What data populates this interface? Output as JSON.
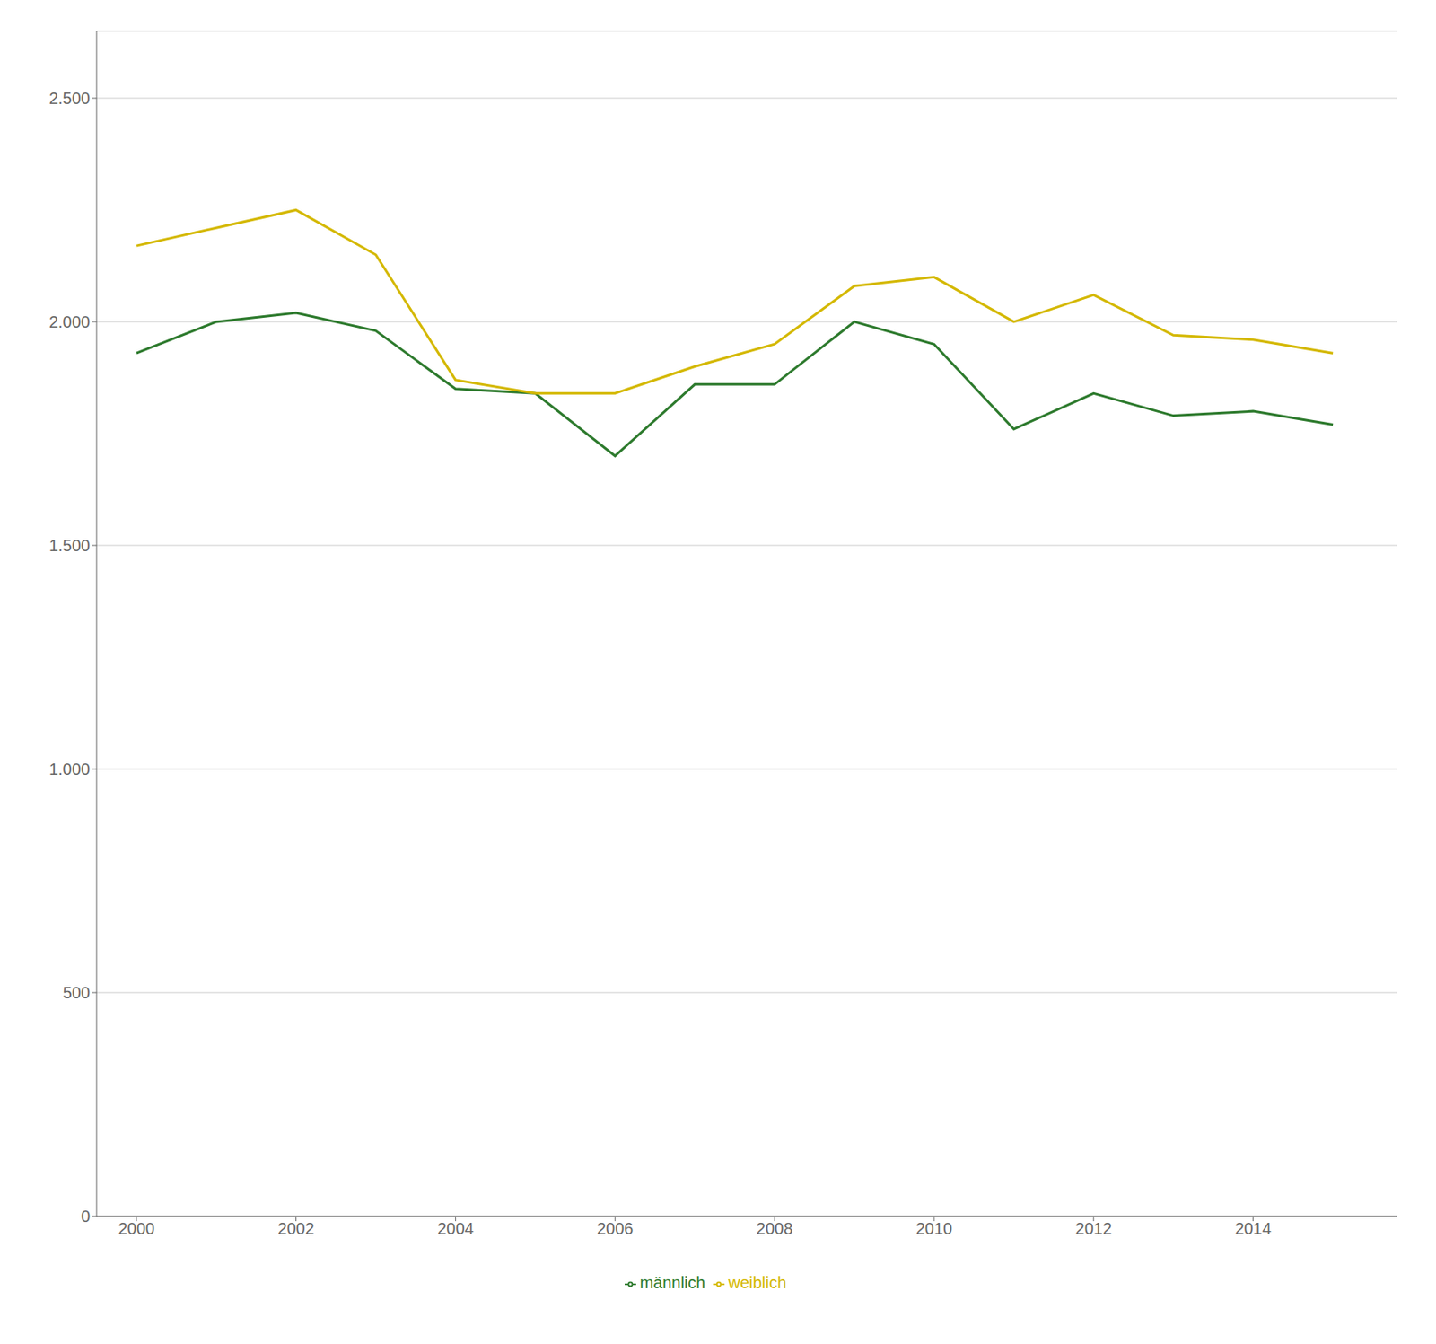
{
  "chart_data": {
    "type": "line",
    "x": [
      2000,
      2001,
      2002,
      2003,
      2004,
      2005,
      2006,
      2007,
      2008,
      2009,
      2010,
      2011,
      2012,
      2013,
      2014,
      2015
    ],
    "series": [
      {
        "name": "männlich",
        "color": "#2d7a2d",
        "values": [
          1930,
          2000,
          2020,
          1980,
          1850,
          1840,
          1700,
          1860,
          1860,
          2000,
          1950,
          1760,
          1840,
          1790,
          1800,
          1770
        ]
      },
      {
        "name": "weiblich",
        "color": "#d4b800",
        "values": [
          2170,
          2210,
          2250,
          2150,
          1870,
          1840,
          1840,
          1900,
          1950,
          2080,
          2100,
          2000,
          2060,
          1970,
          1960,
          1930
        ]
      }
    ],
    "xlim": [
      1999.5,
      2015.8
    ],
    "xticks": [
      2000,
      2002,
      2004,
      2006,
      2008,
      2010,
      2012,
      2014
    ],
    "ylim": [
      0,
      2650
    ],
    "yticks": [
      0,
      500,
      {
        "value": 1000,
        "label": "1.000"
      },
      {
        "value": 1500,
        "label": "1.500"
      },
      {
        "value": 2000,
        "label": "2.000"
      },
      {
        "value": 2500,
        "label": "2.500"
      }
    ],
    "grid": true,
    "legend": "bottom"
  }
}
